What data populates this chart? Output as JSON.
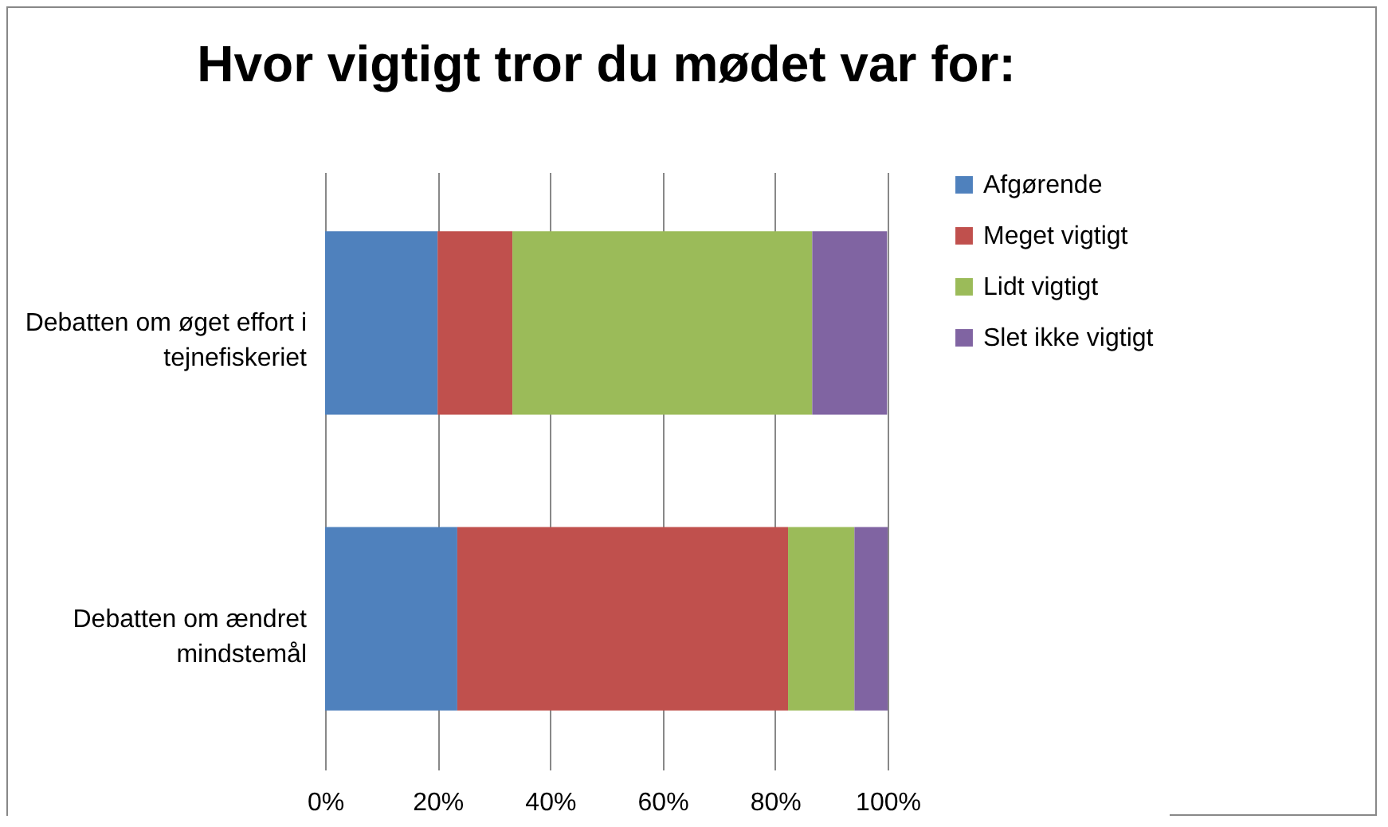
{
  "chart_data": {
    "type": "bar",
    "title": "Hvor vigtigt tror du mødet var for:",
    "orientation": "horizontal",
    "stacked": true,
    "categories": [
      "Debatten om øget effort i tejnefiskeriet",
      "Debatten om ændret mindstemål"
    ],
    "series": [
      {
        "name": "Afgørende",
        "color": "#4f81bd",
        "values": [
          20,
          23.5
        ]
      },
      {
        "name": "Meget vigtigt",
        "color": "#c0504d",
        "values": [
          13.3,
          58.8
        ]
      },
      {
        "name": "Lidt vigtigt",
        "color": "#9bbb59",
        "values": [
          53.3,
          11.8
        ]
      },
      {
        "name": "Slet ikke vigtigt",
        "color": "#8064a2",
        "values": [
          13.3,
          5.9
        ]
      }
    ],
    "xlim": [
      0,
      100
    ],
    "xticks": [
      {
        "value": 0,
        "label": "0%"
      },
      {
        "value": 20,
        "label": "20%"
      },
      {
        "value": 40,
        "label": "40%"
      },
      {
        "value": 60,
        "label": "60%"
      },
      {
        "value": 80,
        "label": "80%"
      },
      {
        "value": 100,
        "label": "100%"
      }
    ],
    "grid": "x",
    "legend": "right"
  }
}
